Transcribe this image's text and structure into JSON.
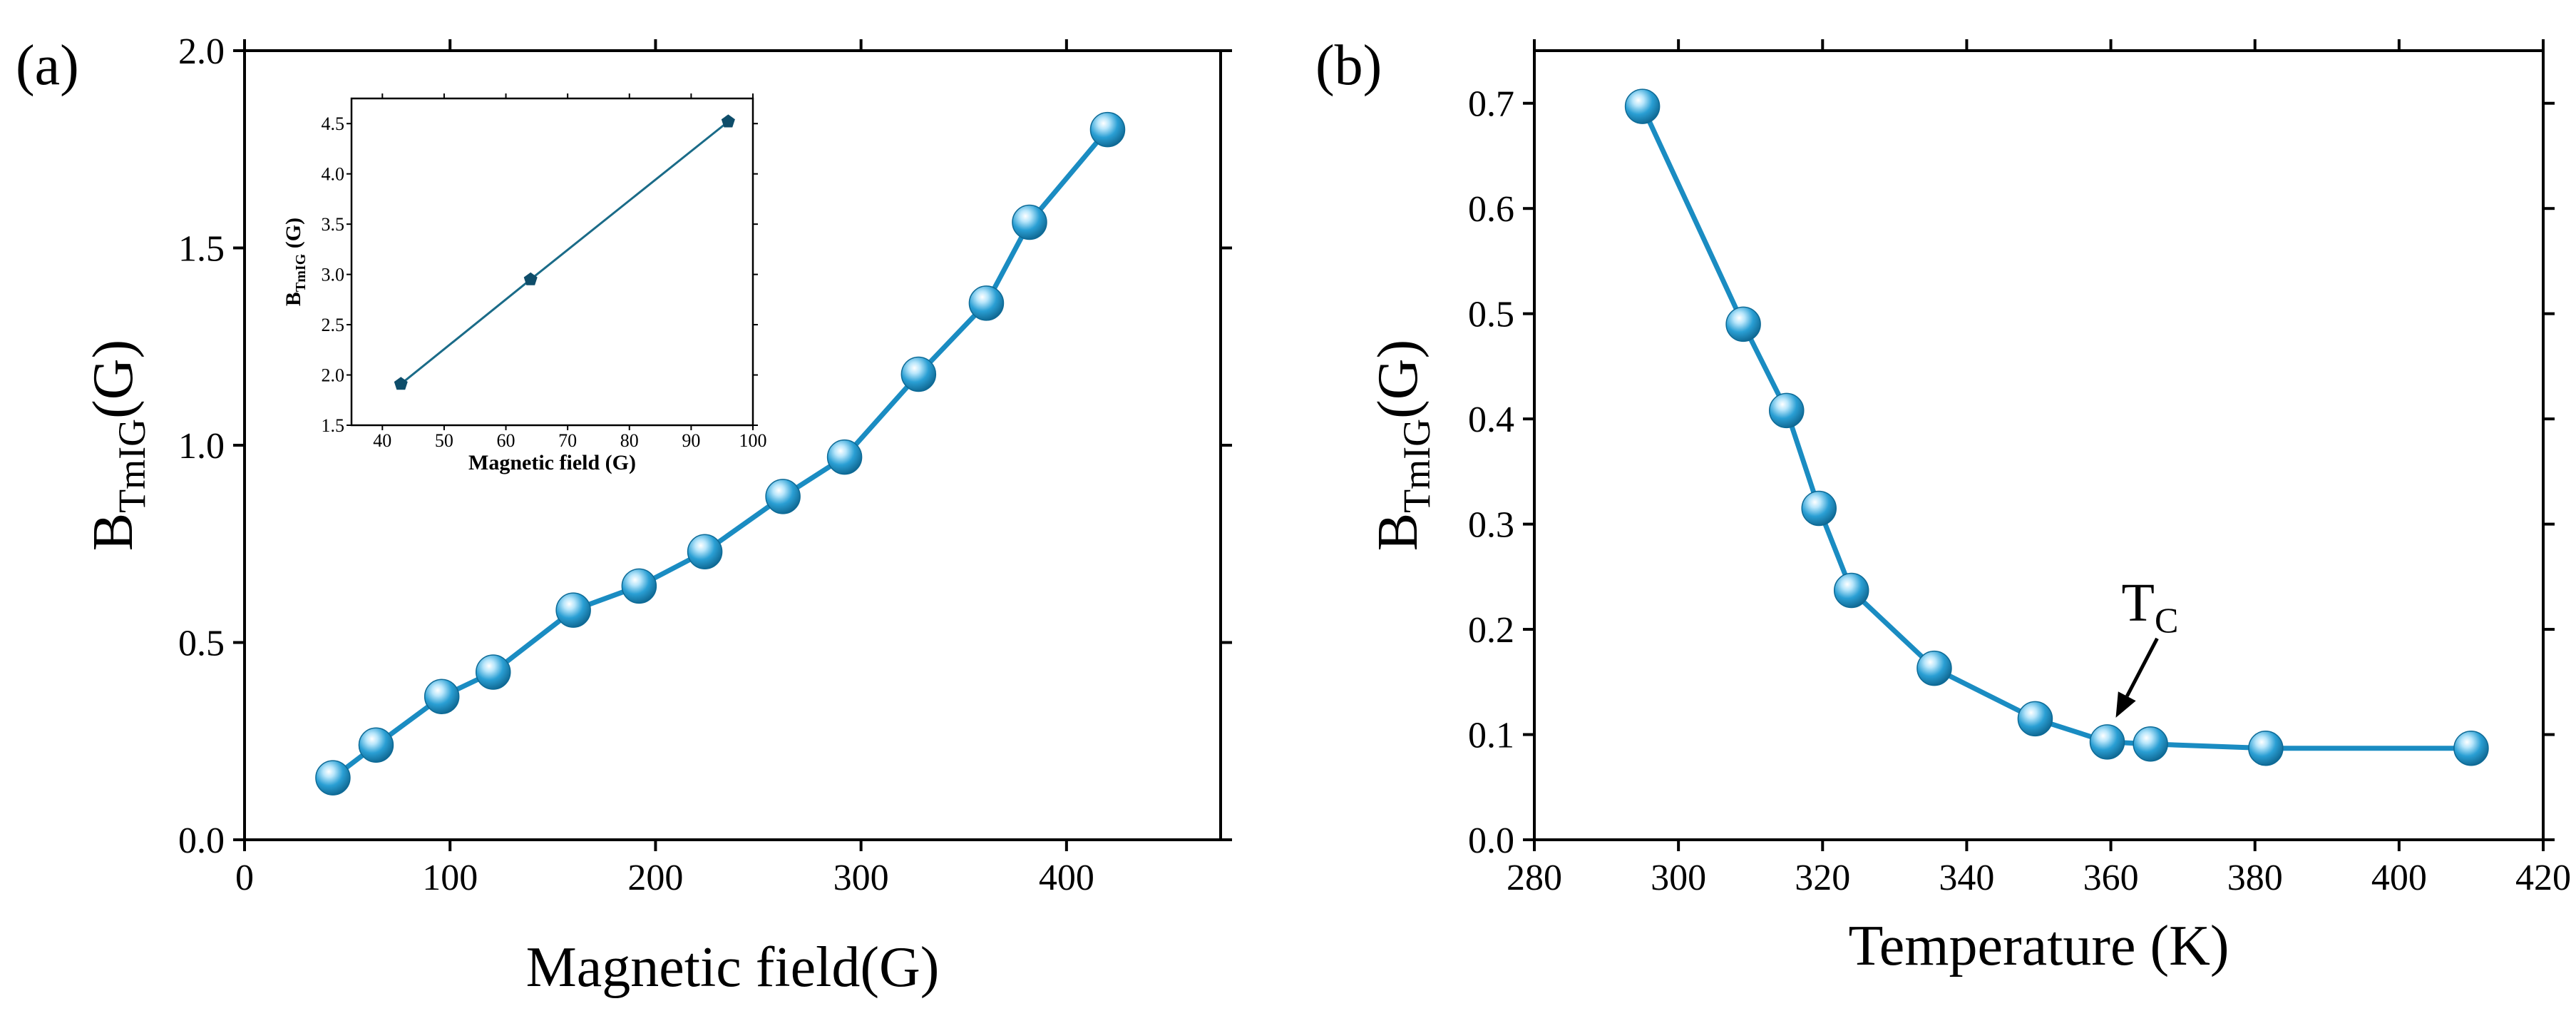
{
  "colors": {
    "series": "#1a8cc2",
    "series_dark": "#0d6a96",
    "inset": "#1a6b88",
    "inset_marker": "#0e4d6a",
    "axis": "#000000"
  },
  "chart_data": [
    {
      "id": "a",
      "panel_label": "(a)",
      "type": "line",
      "xlabel": "Magnetic field(G)",
      "ylabel": {
        "main": "B",
        "sub": "TmIG",
        "unit": "(G)"
      },
      "xlim": [
        0,
        475
      ],
      "ylim": [
        0,
        2.0
      ],
      "xticks": [
        0,
        100,
        200,
        300,
        400
      ],
      "xtick_labels": [
        "0",
        "100",
        "200",
        "300",
        "400"
      ],
      "yticks": [
        0.0,
        0.5,
        1.0,
        1.5,
        2.0
      ],
      "ytick_labels": [
        "0.0",
        "0.5",
        "1.0",
        "1.5",
        "2.0"
      ],
      "x": [
        43,
        64,
        96,
        121,
        160,
        192,
        224,
        262,
        292,
        328,
        361,
        382,
        420
      ],
      "y": [
        0.157,
        0.24,
        0.363,
        0.425,
        0.582,
        0.643,
        0.73,
        0.87,
        0.97,
        1.18,
        1.36,
        1.565,
        1.8
      ],
      "inset": {
        "type": "line",
        "xlabel": "Magnetic field (G)",
        "ylabel": {
          "main": "B",
          "sub": "TmIG",
          "unit": " (G)"
        },
        "xlim": [
          35,
          100
        ],
        "ylim": [
          1.5,
          4.75
        ],
        "xticks": [
          40,
          50,
          60,
          70,
          80,
          90,
          100
        ],
        "xtick_labels": [
          "40",
          "50",
          "60",
          "70",
          "80",
          "90",
          "100"
        ],
        "yticks": [
          1.5,
          2.0,
          2.5,
          3.0,
          3.5,
          4.0,
          4.5
        ],
        "ytick_labels": [
          "1.5",
          "2.0",
          "2.5",
          "3.0",
          "3.5",
          "4.0",
          "4.5"
        ],
        "x": [
          43,
          64,
          96
        ],
        "y": [
          1.91,
          2.95,
          4.52
        ]
      }
    },
    {
      "id": "b",
      "panel_label": "(b)",
      "type": "line",
      "xlabel": "Temperature (K)",
      "ylabel": {
        "main": "B",
        "sub": "TmIG",
        "unit": "(G)"
      },
      "xlim": [
        280,
        420
      ],
      "ylim": [
        0,
        0.75
      ],
      "xticks": [
        280,
        300,
        320,
        340,
        360,
        380,
        400,
        420
      ],
      "xtick_labels": [
        "280",
        "300",
        "320",
        "340",
        "360",
        "380",
        "400",
        "420"
      ],
      "yticks": [
        0.0,
        0.1,
        0.2,
        0.3,
        0.4,
        0.5,
        0.6,
        0.7
      ],
      "ytick_labels": [
        "0.0",
        "0.1",
        "0.2",
        "0.3",
        "0.4",
        "0.5",
        "0.6",
        "0.7"
      ],
      "x": [
        295,
        309,
        315,
        319.5,
        324,
        335.5,
        349.5,
        359.5,
        365.5,
        381.5,
        410
      ],
      "y": [
        0.697,
        0.49,
        0.408,
        0.315,
        0.237,
        0.163,
        0.115,
        0.093,
        0.091,
        0.087,
        0.087
      ],
      "annotation": {
        "text_main": "T",
        "text_sub": "C",
        "target_x": 359.5,
        "target_y": 0.093
      }
    }
  ]
}
